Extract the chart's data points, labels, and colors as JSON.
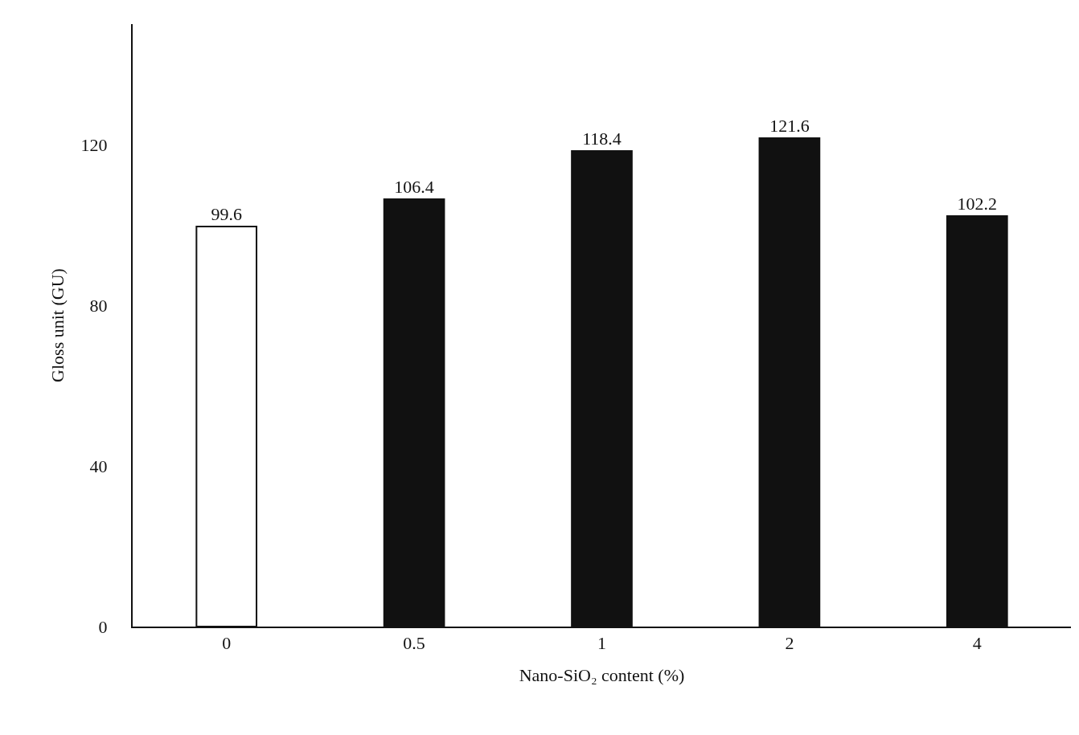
{
  "chart_data": {
    "type": "bar",
    "xlabel": "Nano-SiO₂ content (%)",
    "ylabel": "Gloss unit (GU)",
    "categories": [
      "0",
      "0.5",
      "1",
      "2",
      "4"
    ],
    "values": [
      99.6,
      106.4,
      118.4,
      121.6,
      102.2
    ],
    "colors": [
      "#ffffff",
      "#111111",
      "#111111",
      "#111111",
      "#111111"
    ],
    "ylim": [
      0,
      150
    ],
    "yticks": [
      0,
      40,
      80,
      120
    ],
    "legend": false,
    "data_labels": true
  }
}
